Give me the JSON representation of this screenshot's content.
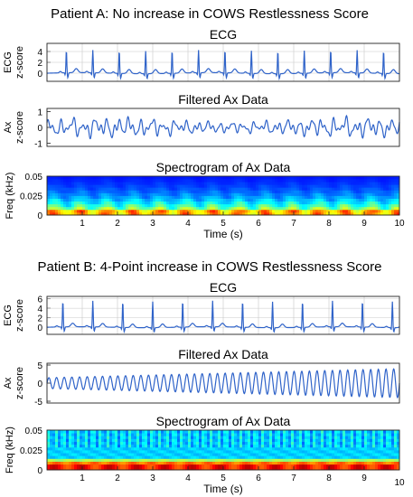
{
  "chart_data": [
    {
      "type": "line",
      "group_title": "Patient A: No increase in COWS Restlessness Score",
      "title": "ECG",
      "ylabel": [
        "ECG",
        "z-score"
      ],
      "xlim": [
        0,
        10
      ],
      "ylim": [
        -1.5,
        5.5
      ],
      "yticks": [
        0,
        2,
        4
      ],
      "grid": true,
      "signal": "ecg",
      "beats": [
        0.55,
        1.3,
        2.05,
        2.8,
        3.55,
        4.3,
        5.05,
        5.8,
        6.55,
        7.3,
        8.05,
        8.8,
        9.55
      ],
      "peak_z": 4.2,
      "line_color": "#2f63c9"
    },
    {
      "type": "line",
      "title": "Filtered Ax Data",
      "ylabel": [
        "Ax",
        "z-score"
      ],
      "xlim": [
        0,
        10
      ],
      "ylim": [
        -1.2,
        1.2
      ],
      "yticks": [
        -1,
        0,
        1
      ],
      "grid": false,
      "signal": "irregular",
      "amplitude_z": 0.65,
      "line_color": "#2f63c9"
    },
    {
      "type": "heatmap",
      "title": "Spectrogram of Ax Data",
      "ylabel": [
        "Freq (kHz)"
      ],
      "xlabel": "Time (s)",
      "xlim": [
        0,
        10
      ],
      "ylim": [
        0,
        0.05
      ],
      "yticks": [
        0,
        0.025,
        0.05
      ],
      "xticks": [
        1,
        2,
        3,
        4,
        5,
        6,
        7,
        8,
        9,
        10
      ],
      "pattern": "broadband",
      "colormap": "jet"
    },
    {
      "type": "line",
      "group_title": "Patient B: 4-Point increase in COWS Restlessness Score",
      "title": "ECG",
      "ylabel": [
        "ECG",
        "z-score"
      ],
      "xlim": [
        0,
        10
      ],
      "ylim": [
        -1.5,
        6.5
      ],
      "yticks": [
        0,
        2,
        4,
        6
      ],
      "grid": true,
      "signal": "ecg",
      "beats": [
        0.45,
        1.3,
        2.15,
        3.0,
        3.85,
        4.7,
        5.55,
        6.4,
        7.25,
        8.1,
        8.95,
        9.8
      ],
      "peak_z": 5.5,
      "line_color": "#2f63c9"
    },
    {
      "type": "line",
      "title": "Filtered Ax Data",
      "ylabel": [
        "Ax",
        "z-score"
      ],
      "xlim": [
        0,
        10
      ],
      "ylim": [
        -5.5,
        5.5
      ],
      "yticks": [
        -5,
        0,
        5
      ],
      "grid": false,
      "signal": "oscillation",
      "frequency_hz": 4.6,
      "amplitude_start_z": 1.5,
      "amplitude_end_z": 4.0,
      "line_color": "#2f63c9"
    },
    {
      "type": "heatmap",
      "title": "Spectrogram of Ax Data",
      "ylabel": [
        "Freq (kHz)"
      ],
      "xlabel": "Time (s)",
      "xlim": [
        0,
        10
      ],
      "ylim": [
        0,
        0.05
      ],
      "yticks": [
        0,
        0.025,
        0.05
      ],
      "xticks": [
        1,
        2,
        3,
        4,
        5,
        6,
        7,
        8,
        9,
        10
      ],
      "pattern": "narrowband",
      "colormap": "jet"
    }
  ]
}
